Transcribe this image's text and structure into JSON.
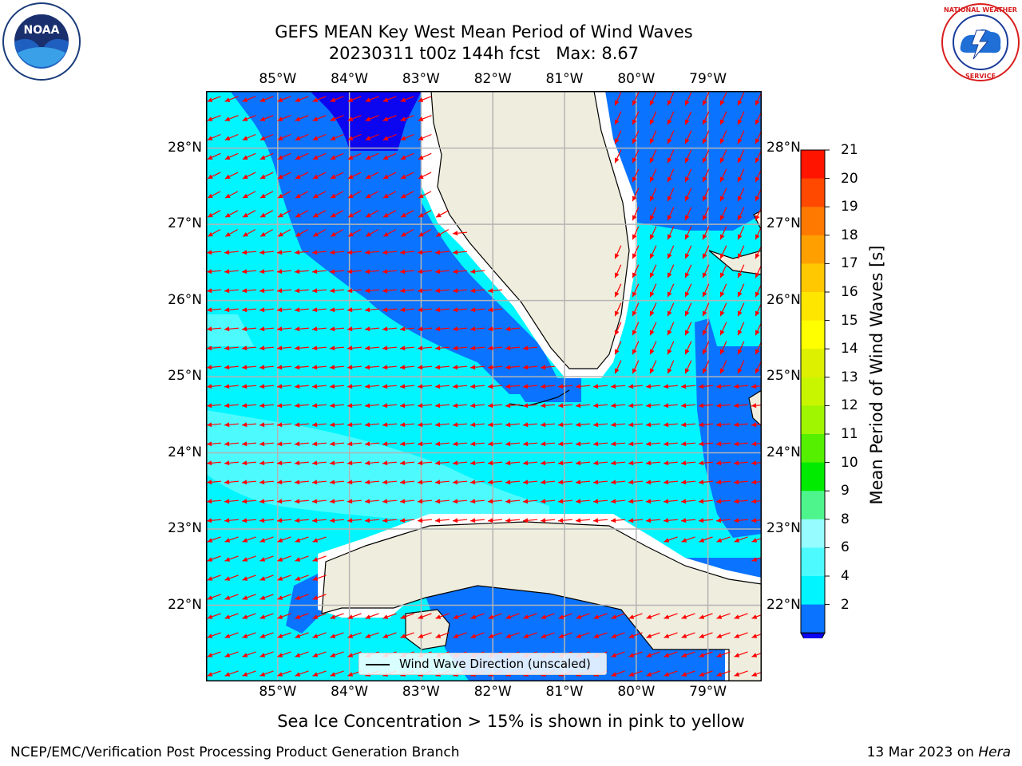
{
  "header": {
    "title_line1": "GEFS MEAN Key West Mean Period of Wind Waves",
    "title_line2": "20230311 t00z 144h fcst   Max: 8.67"
  },
  "logos": {
    "left": {
      "name": "noaa-logo",
      "text": "NOAA"
    },
    "right": {
      "name": "nws-logo",
      "text": "NATIONAL WEATHER SERVICE"
    }
  },
  "map": {
    "lon_labels": [
      "85°W",
      "84°W",
      "83°W",
      "82°W",
      "81°W",
      "80°W",
      "79°W"
    ],
    "lat_labels": [
      "28°N",
      "27°N",
      "26°N",
      "25°N",
      "24°N",
      "23°N",
      "22°N"
    ],
    "extent": {
      "lon_min": -86.0,
      "lon_max": -78.25,
      "lat_min": 21.0,
      "lat_max": 28.75
    },
    "colors": {
      "land": "#efeddd",
      "band_2_4": "#0a73ff",
      "band_4_6": "#00f5ff",
      "band_6_8": "#4dfbff",
      "band_8_9": "#96fcff",
      "deep": "#0b05f0",
      "arrow": "#ff0000",
      "grid": "#b4b4b4",
      "coast": "#000000"
    },
    "arrow_direction": "east-to-west (pointing generally west/southwest)",
    "legend_label": "Wind Wave Direction (unscaled)"
  },
  "colorbar": {
    "title": "Mean Period of Wind Waves [s]",
    "ticks": [
      "2",
      "4",
      "6",
      "8",
      "9",
      "10",
      "11",
      "12",
      "13",
      "14",
      "15",
      "16",
      "17",
      "18",
      "19",
      "20",
      "21"
    ],
    "colors": [
      "#0a73ff",
      "#00f5ff",
      "#4dfbff",
      "#96fcff",
      "#4df58c",
      "#00eb00",
      "#55f000",
      "#a0f500",
      "#c8f500",
      "#dcf000",
      "#ffff00",
      "#ffe600",
      "#ffc800",
      "#ffa000",
      "#ff7800",
      "#ff4800",
      "#ff1400"
    ],
    "under_color": "#0b05f0"
  },
  "footer": {
    "subtitle": "Sea Ice Concentration > 15% is shown in pink to yellow",
    "credit": "NCEP/EMC/Verification Post Processing Product Generation Branch",
    "date": "13 Mar 2023 on ",
    "machine": "Hera"
  }
}
